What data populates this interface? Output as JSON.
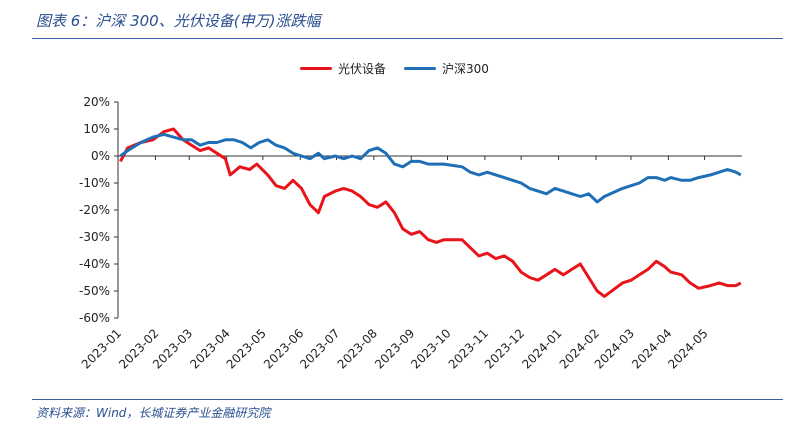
{
  "header": {
    "title": "图表 6：沪深 300、光伏设备(申万)涨跌幅"
  },
  "footer": {
    "source": "资料来源：Wind，长城证券产业金融研究院"
  },
  "colors": {
    "pv": "#e8141a",
    "hs300": "#1f6fb6",
    "accent": "#2a4f8f"
  },
  "chart_data": {
    "type": "line",
    "title": "",
    "xlabel": "",
    "ylabel": "",
    "ylim": [
      -60,
      20
    ],
    "yticks": [
      "20%",
      "10%",
      "0%",
      "-10%",
      "-20%",
      "-30%",
      "-40%",
      "-50%",
      "-60%"
    ],
    "xticks": [
      "2023-01",
      "2023-02",
      "2023-03",
      "2023-04",
      "2023-05",
      "2023-06",
      "2023-07",
      "2023-08",
      "2023-09",
      "2023-10",
      "2023-11",
      "2023-12",
      "2024-01",
      "2024-02",
      "2024-03",
      "2024-04",
      "2024-05"
    ],
    "legend": {
      "position": "top"
    },
    "grid": false,
    "series": [
      {
        "name": "光伏设备",
        "color": "#e8141a",
        "points": [
          [
            "2023-01-03",
            -2
          ],
          [
            "2023-01-09",
            3
          ],
          [
            "2023-01-20",
            5
          ],
          [
            "2023-01-30",
            6
          ],
          [
            "2023-02-08",
            9
          ],
          [
            "2023-02-16",
            10
          ],
          [
            "2023-02-24",
            6
          ],
          [
            "2023-03-03",
            4
          ],
          [
            "2023-03-10",
            2
          ],
          [
            "2023-03-17",
            3
          ],
          [
            "2023-03-24",
            1
          ],
          [
            "2023-03-31",
            -1
          ],
          [
            "2023-04-04",
            -7
          ],
          [
            "2023-04-12",
            -4
          ],
          [
            "2023-04-20",
            -5
          ],
          [
            "2023-04-26",
            -3
          ],
          [
            "2023-05-05",
            -7
          ],
          [
            "2023-05-12",
            -11
          ],
          [
            "2023-05-19",
            -12
          ],
          [
            "2023-05-26",
            -9
          ],
          [
            "2023-06-02",
            -12
          ],
          [
            "2023-06-09",
            -18
          ],
          [
            "2023-06-16",
            -21
          ],
          [
            "2023-06-21",
            -15
          ],
          [
            "2023-06-30",
            -13
          ],
          [
            "2023-07-07",
            -12
          ],
          [
            "2023-07-14",
            -13
          ],
          [
            "2023-07-21",
            -15
          ],
          [
            "2023-07-28",
            -18
          ],
          [
            "2023-08-04",
            -19
          ],
          [
            "2023-08-11",
            -17
          ],
          [
            "2023-08-18",
            -21
          ],
          [
            "2023-08-25",
            -27
          ],
          [
            "2023-09-01",
            -29
          ],
          [
            "2023-09-08",
            -28
          ],
          [
            "2023-09-15",
            -31
          ],
          [
            "2023-09-22",
            -32
          ],
          [
            "2023-09-28",
            -31
          ],
          [
            "2023-10-13",
            -31
          ],
          [
            "2023-10-20",
            -34
          ],
          [
            "2023-10-27",
            -37
          ],
          [
            "2023-11-03",
            -36
          ],
          [
            "2023-11-10",
            -38
          ],
          [
            "2023-11-17",
            -37
          ],
          [
            "2023-11-24",
            -39
          ],
          [
            "2023-12-01",
            -43
          ],
          [
            "2023-12-08",
            -45
          ],
          [
            "2023-12-15",
            -46
          ],
          [
            "2023-12-22",
            -44
          ],
          [
            "2023-12-29",
            -42
          ],
          [
            "2024-01-05",
            -44
          ],
          [
            "2024-01-12",
            -42
          ],
          [
            "2024-01-19",
            -40
          ],
          [
            "2024-01-26",
            -45
          ],
          [
            "2024-02-02",
            -50
          ],
          [
            "2024-02-08",
            -52
          ],
          [
            "2024-02-23",
            -47
          ],
          [
            "2024-03-01",
            -46
          ],
          [
            "2024-03-08",
            -44
          ],
          [
            "2024-03-15",
            -42
          ],
          [
            "2024-03-22",
            -39
          ],
          [
            "2024-03-29",
            -41
          ],
          [
            "2024-04-03",
            -43
          ],
          [
            "2024-04-12",
            -44
          ],
          [
            "2024-04-19",
            -47
          ],
          [
            "2024-04-26",
            -49
          ],
          [
            "2024-05-06",
            -48
          ],
          [
            "2024-05-13",
            -47
          ],
          [
            "2024-05-20",
            -48
          ],
          [
            "2024-05-27",
            -48
          ],
          [
            "2024-05-31",
            -47
          ]
        ]
      },
      {
        "name": "沪深300",
        "color": "#1f6fb6",
        "points": [
          [
            "2023-01-03",
            0
          ],
          [
            "2023-01-09",
            2
          ],
          [
            "2023-01-20",
            5
          ],
          [
            "2023-01-30",
            7
          ],
          [
            "2023-02-08",
            8
          ],
          [
            "2023-02-16",
            7
          ],
          [
            "2023-02-24",
            6
          ],
          [
            "2023-03-03",
            6
          ],
          [
            "2023-03-10",
            4
          ],
          [
            "2023-03-17",
            5
          ],
          [
            "2023-03-24",
            5
          ],
          [
            "2023-03-31",
            6
          ],
          [
            "2023-04-07",
            6
          ],
          [
            "2023-04-14",
            5
          ],
          [
            "2023-04-21",
            3
          ],
          [
            "2023-04-28",
            5
          ],
          [
            "2023-05-05",
            6
          ],
          [
            "2023-05-12",
            4
          ],
          [
            "2023-05-19",
            3
          ],
          [
            "2023-05-26",
            1
          ],
          [
            "2023-06-02",
            0
          ],
          [
            "2023-06-09",
            -1
          ],
          [
            "2023-06-16",
            1
          ],
          [
            "2023-06-21",
            -1
          ],
          [
            "2023-06-30",
            0
          ],
          [
            "2023-07-07",
            -1
          ],
          [
            "2023-07-14",
            0
          ],
          [
            "2023-07-21",
            -1
          ],
          [
            "2023-07-28",
            2
          ],
          [
            "2023-08-04",
            3
          ],
          [
            "2023-08-11",
            1
          ],
          [
            "2023-08-18",
            -3
          ],
          [
            "2023-08-25",
            -4
          ],
          [
            "2023-09-01",
            -2
          ],
          [
            "2023-09-08",
            -2
          ],
          [
            "2023-09-15",
            -3
          ],
          [
            "2023-09-22",
            -3
          ],
          [
            "2023-09-28",
            -3
          ],
          [
            "2023-10-13",
            -4
          ],
          [
            "2023-10-20",
            -6
          ],
          [
            "2023-10-27",
            -7
          ],
          [
            "2023-11-03",
            -6
          ],
          [
            "2023-11-10",
            -7
          ],
          [
            "2023-11-17",
            -8
          ],
          [
            "2023-11-24",
            -9
          ],
          [
            "2023-12-01",
            -10
          ],
          [
            "2023-12-08",
            -12
          ],
          [
            "2023-12-15",
            -13
          ],
          [
            "2023-12-22",
            -14
          ],
          [
            "2023-12-29",
            -12
          ],
          [
            "2024-01-05",
            -13
          ],
          [
            "2024-01-12",
            -14
          ],
          [
            "2024-01-19",
            -15
          ],
          [
            "2024-01-26",
            -14
          ],
          [
            "2024-02-02",
            -17
          ],
          [
            "2024-02-08",
            -15
          ],
          [
            "2024-02-23",
            -12
          ],
          [
            "2024-03-01",
            -11
          ],
          [
            "2024-03-08",
            -10
          ],
          [
            "2024-03-15",
            -8
          ],
          [
            "2024-03-22",
            -8
          ],
          [
            "2024-03-29",
            -9
          ],
          [
            "2024-04-03",
            -8
          ],
          [
            "2024-04-12",
            -9
          ],
          [
            "2024-04-19",
            -9
          ],
          [
            "2024-04-26",
            -8
          ],
          [
            "2024-05-06",
            -7
          ],
          [
            "2024-05-13",
            -6
          ],
          [
            "2024-05-20",
            -5
          ],
          [
            "2024-05-27",
            -6
          ],
          [
            "2024-05-31",
            -7
          ]
        ]
      }
    ]
  }
}
